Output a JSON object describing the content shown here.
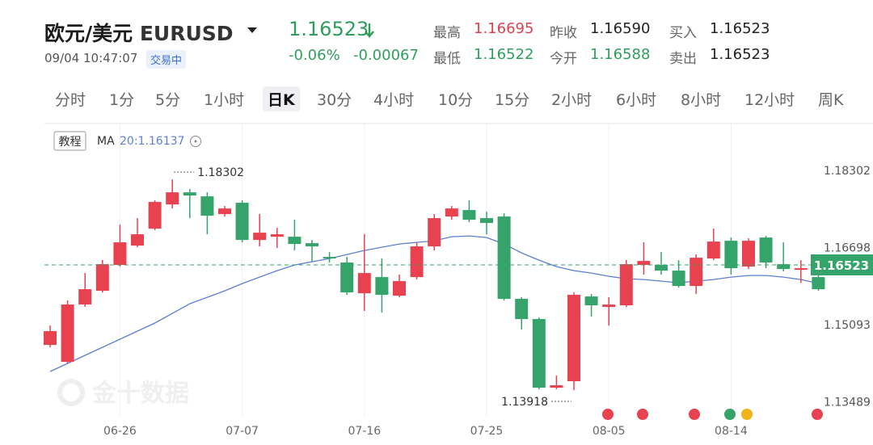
{
  "header": {
    "title": "欧元/美元",
    "symbol": "EURUSD",
    "datetime": "09/04 10:47:07",
    "status": "交易中",
    "price": "1.16523",
    "change_pct": "-0.06%",
    "change_abs": "-0.00067",
    "stats": [
      {
        "label": "最高",
        "value": "1.16695"
      },
      {
        "label": "最低",
        "value": "1.16522"
      },
      {
        "label": "昨收",
        "value": "1.16590"
      },
      {
        "label": "今开",
        "value": "1.16588"
      },
      {
        "label": "买入",
        "value": "1.16523"
      },
      {
        "label": "卖出",
        "value": "1.16523"
      }
    ]
  },
  "tabs": {
    "items": [
      "分时",
      "1分",
      "5分",
      "1小时",
      "日K",
      "30分",
      "4小时",
      "10分",
      "15分",
      "2小时",
      "6小时",
      "8小时",
      "12小时",
      "周K"
    ],
    "active": 4
  },
  "chart_data": {
    "type": "candlestick",
    "tutorial_button": "教程",
    "watermark": "金十数据",
    "categories": [
      null,
      null,
      null,
      null,
      "06-26",
      null,
      null,
      null,
      null,
      null,
      null,
      "07-07",
      null,
      null,
      null,
      null,
      null,
      null,
      "07-16",
      null,
      null,
      null,
      null,
      null,
      null,
      "07-25",
      null,
      null,
      null,
      null,
      null,
      null,
      "08-05",
      null,
      null,
      null,
      null,
      null,
      null,
      "08-14",
      null,
      null,
      null,
      null,
      null
    ],
    "open": [
      1.14858,
      1.14505,
      1.15698,
      1.15984,
      1.16521,
      1.16924,
      1.17277,
      1.17781,
      1.18033,
      1.17949,
      1.1758,
      1.17815,
      1.17042,
      1.17109,
      1.17109,
      1.16975,
      1.16689,
      1.16572,
      1.15933,
      1.16269,
      1.15883,
      1.16269,
      1.16908,
      1.17529,
      1.17664,
      1.17496,
      1.17529,
      1.15816,
      1.15396,
      1.13968,
      1.14102,
      1.15866,
      1.15648,
      1.15681,
      1.16521,
      1.16521,
      1.16404,
      1.16084,
      1.16656,
      1.17025,
      1.16488,
      1.17092,
      1.16538,
      1.1642,
      1.16269
    ],
    "high": [
      1.15261,
      1.15782,
      1.16353,
      1.16622,
      1.17361,
      1.17496,
      1.17865,
      1.18302,
      1.181,
      1.18033,
      1.17748,
      1.17865,
      1.1758,
      1.17294,
      1.17462,
      1.17042,
      1.1679,
      1.16689,
      1.1716,
      1.16656,
      1.1632,
      1.16992,
      1.1758,
      1.17748,
      1.17865,
      1.1763,
      1.17596,
      1.15849,
      1.15429,
      1.1422,
      1.1595,
      1.15916,
      1.15849,
      1.16622,
      1.16992,
      1.1679,
      1.16622,
      1.1674,
      1.17277,
      1.17092,
      1.17076,
      1.17126,
      1.16992,
      1.16622,
      1.16488
    ],
    "low": [
      1.14808,
      1.14472,
      1.15648,
      1.1595,
      1.16488,
      1.16891,
      1.17244,
      1.17697,
      1.17496,
      1.1716,
      1.17529,
      1.16992,
      1.16908,
      1.16874,
      1.16824,
      1.16588,
      1.16572,
      1.159,
      1.15564,
      1.1553,
      1.15849,
      1.16219,
      1.16824,
      1.17462,
      1.17412,
      1.1716,
      1.15782,
      1.15177,
      1.13934,
      1.13934,
      1.13918,
      1.15446,
      1.15261,
      1.15648,
      1.1632,
      1.1632,
      1.16051,
      1.15916,
      1.16622,
      1.1632,
      1.16437,
      1.16454,
      1.16387,
      1.16152,
      1.15984
    ],
    "close": [
      1.15144,
      1.15698,
      1.16017,
      1.16538,
      1.16992,
      1.1716,
      1.17832,
      1.18033,
      1.17966,
      1.17546,
      1.17697,
      1.17042,
      1.17193,
      1.1716,
      1.16958,
      1.16908,
      1.16656,
      1.1595,
      1.16353,
      1.159,
      1.16185,
      1.16908,
      1.17496,
      1.17697,
      1.17462,
      1.17395,
      1.15816,
      1.15396,
      1.13968,
      1.14018,
      1.159,
      1.15681,
      1.15698,
      1.16538,
      1.16605,
      1.16404,
      1.16084,
      1.16672,
      1.17008,
      1.16454,
      1.17025,
      1.16572,
      1.16437,
      1.16454,
      1.16017
    ],
    "up_color": "#e8414f",
    "down_color": "#35a46a",
    "ma": {
      "name": "MA",
      "label": "20:1.16137",
      "color": "#5b7fd6",
      "values": [
        1.14304,
        1.14472,
        1.1464,
        1.14808,
        1.14976,
        1.15144,
        1.15312,
        1.15513,
        1.15715,
        1.15849,
        1.15984,
        1.16135,
        1.16269,
        1.16404,
        1.16521,
        1.16588,
        1.16656,
        1.1674,
        1.16824,
        1.16891,
        1.16958,
        1.16992,
        1.17025,
        1.17109,
        1.17126,
        1.17092,
        1.16958,
        1.16773,
        1.16622,
        1.16488,
        1.16404,
        1.16353,
        1.16286,
        1.16236,
        1.16219,
        1.16185,
        1.16152,
        1.16185,
        1.16219,
        1.16269,
        1.16303,
        1.16303,
        1.16269,
        1.16219,
        1.16137
      ]
    },
    "current_price": 1.16523,
    "high_annotation": 1.18302,
    "low_annotation": 1.13918,
    "ylim": [
      1.1338,
      1.1943
    ],
    "yticks": [
      1.18302,
      1.16698,
      1.15093,
      1.13489
    ]
  }
}
